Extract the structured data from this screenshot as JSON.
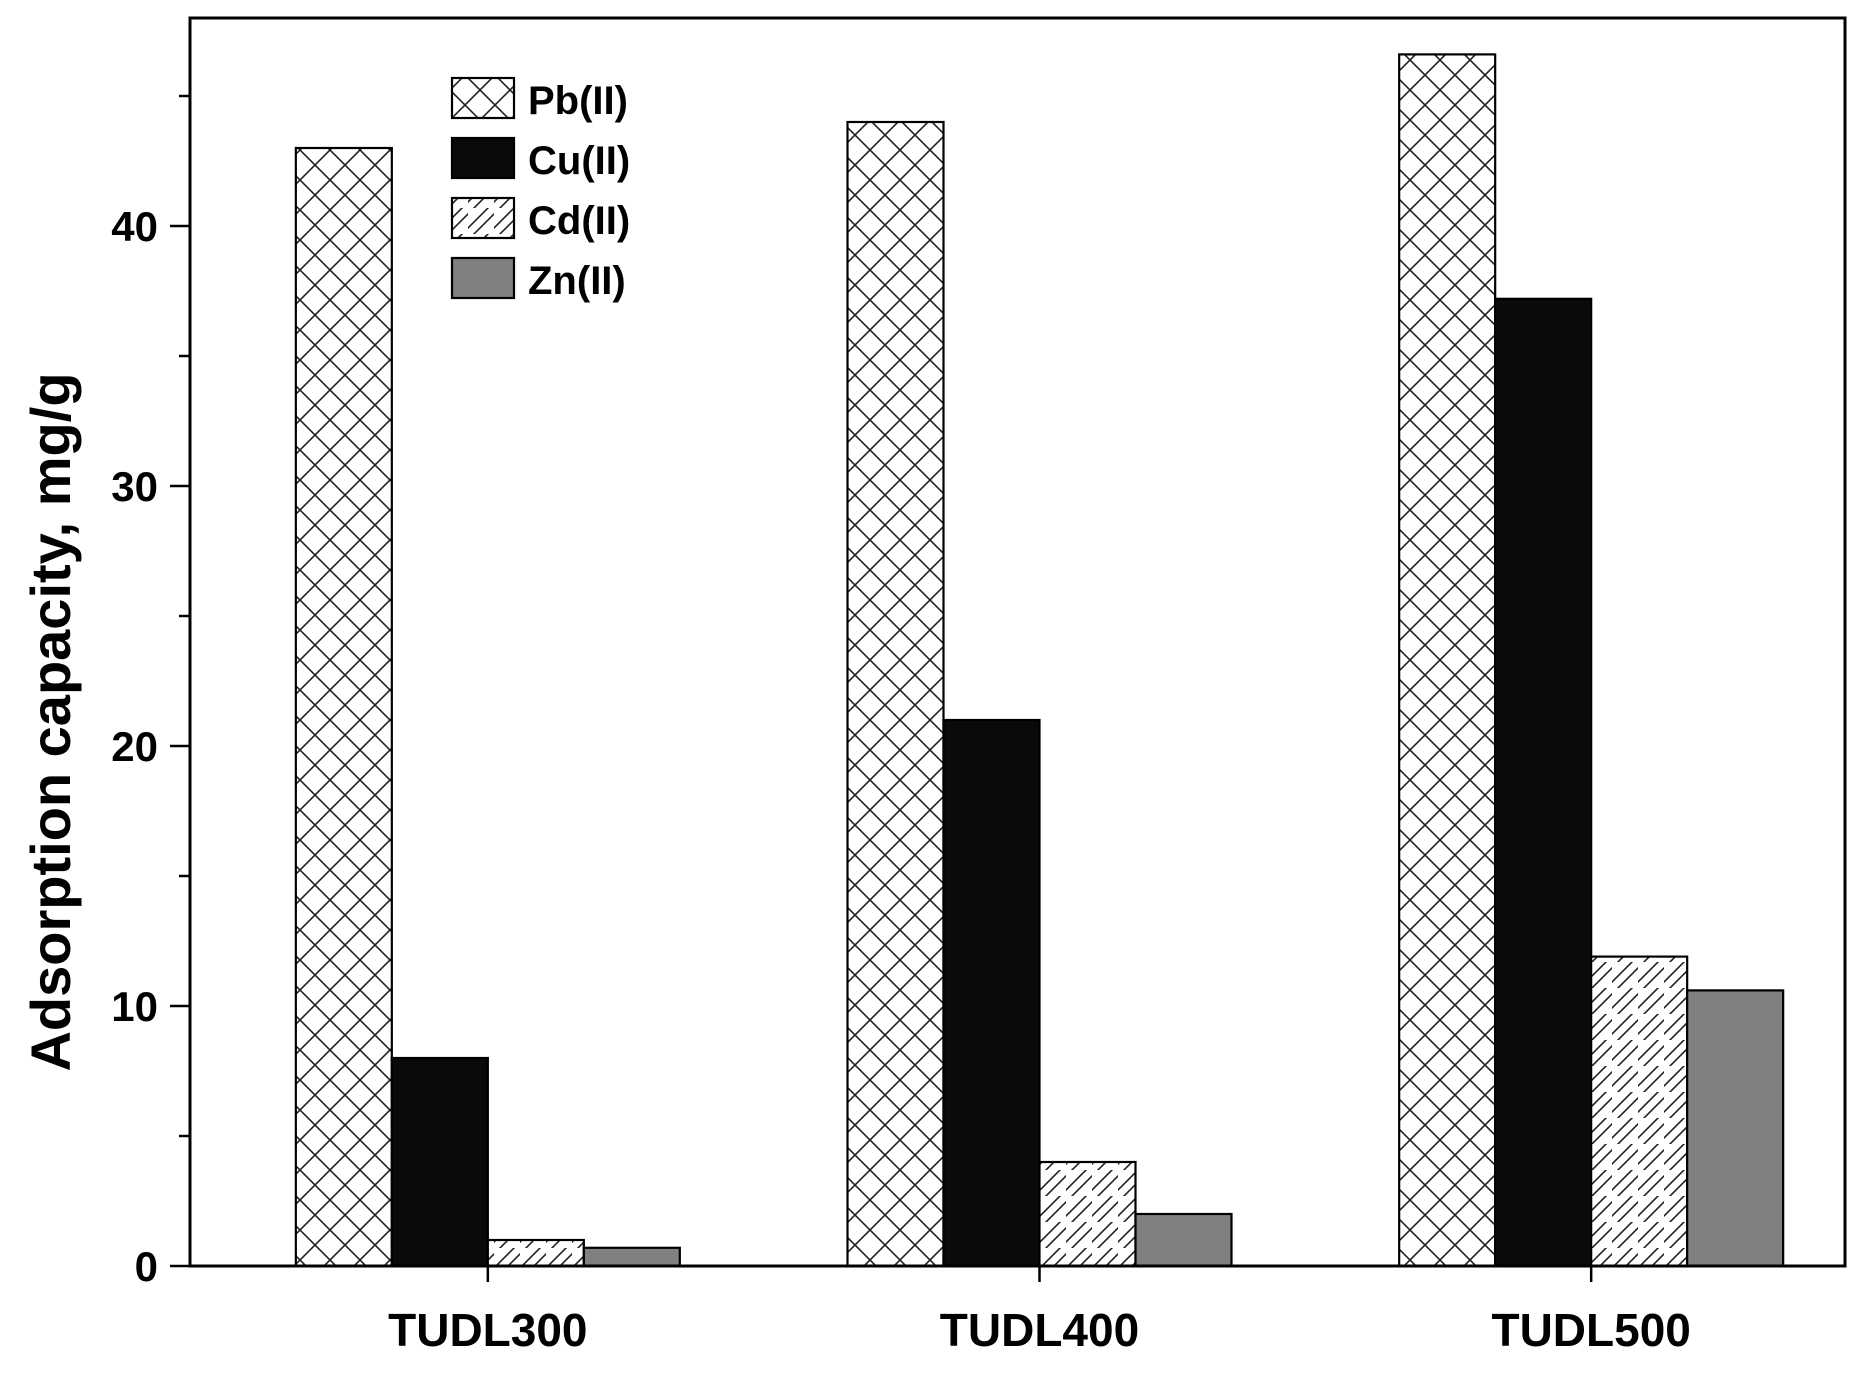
{
  "chart_data": {
    "type": "bar",
    "title": "",
    "xlabel": "",
    "ylabel": "Adsorption capacity, mg/g",
    "ylim": [
      0,
      48
    ],
    "y_ticks": [
      0,
      10,
      20,
      30,
      40
    ],
    "y_minor_step": 5,
    "categories": [
      "TUDL300",
      "TUDL400",
      "TUDL500"
    ],
    "series": [
      {
        "name": "Pb(II)",
        "values": [
          43.0,
          44.0,
          46.6
        ],
        "pattern": "crosshatch",
        "color": "#ffffff"
      },
      {
        "name": "Cu(II)",
        "values": [
          8.0,
          21.0,
          37.2
        ],
        "pattern": "solid",
        "color": "#0a0a0a"
      },
      {
        "name": "Cd(II)",
        "values": [
          1.0,
          4.0,
          11.9
        ],
        "pattern": "diagonal",
        "color": "#ffffff"
      },
      {
        "name": "Zn(II)",
        "values": [
          0.7,
          2.0,
          10.6
        ],
        "pattern": "solid",
        "color": "#808080"
      }
    ],
    "legend_position": "top-left",
    "grid": false
  }
}
